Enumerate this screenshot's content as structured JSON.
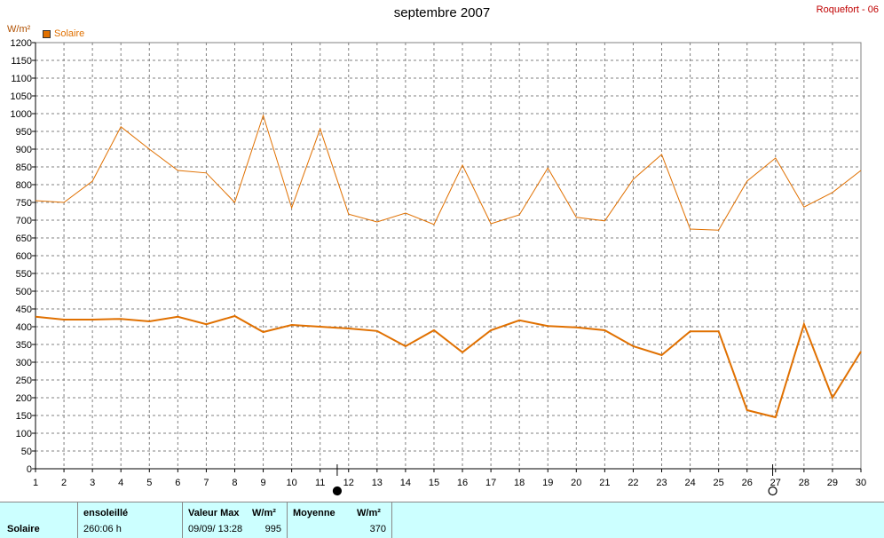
{
  "page": {
    "title": "septembre 2007",
    "station": "Roquefort - 06",
    "unit": "W/m²"
  },
  "legend": {
    "label": "Solaire"
  },
  "colors": {
    "series": "#e07000",
    "grid": "#808080",
    "footer_bg": "#ccffff"
  },
  "markers": [
    {
      "day": 11.6,
      "symbol": "filled-circle",
      "name": "new-moon-icon"
    },
    {
      "day": 26.9,
      "symbol": "open-circle",
      "name": "full-moon-icon"
    }
  ],
  "footer": {
    "row_label": "Solaire",
    "sunshine_label": "ensoleillé",
    "sunshine_value": "260:06 h",
    "max_label": "Valeur Max",
    "max_unit": "W/m²",
    "max_date": "09/09/ 13:28",
    "max_value": "995",
    "avg_label": "Moyenne",
    "avg_unit": "W/m²",
    "avg_value": "370"
  },
  "chart_data": {
    "type": "line",
    "title": "septembre 2007",
    "ylabel": "W/m²",
    "xlabel": "",
    "ylim": [
      0,
      1200
    ],
    "yticks": [
      0,
      50,
      100,
      150,
      200,
      250,
      300,
      350,
      400,
      450,
      500,
      550,
      600,
      650,
      700,
      750,
      800,
      850,
      900,
      950,
      1000,
      1050,
      1100,
      1150,
      1200
    ],
    "x": [
      1,
      2,
      3,
      4,
      5,
      6,
      7,
      8,
      9,
      10,
      11,
      12,
      13,
      14,
      15,
      16,
      17,
      18,
      19,
      20,
      21,
      22,
      23,
      24,
      25,
      26,
      27,
      28,
      29,
      30
    ],
    "grid": true,
    "legend_position": "top-left",
    "series": [
      {
        "name": "Solaire",
        "role": "max",
        "values": [
          755,
          750,
          810,
          963,
          900,
          840,
          833,
          750,
          995,
          735,
          957,
          717,
          695,
          720,
          688,
          855,
          690,
          715,
          847,
          708,
          698,
          815,
          885,
          675,
          672,
          810,
          875,
          737,
          778,
          840
        ]
      },
      {
        "role": "mean",
        "values": [
          428,
          420,
          420,
          422,
          415,
          428,
          407,
          430,
          385,
          405,
          400,
          395,
          388,
          345,
          390,
          328,
          390,
          418,
          402,
          398,
          390,
          345,
          320,
          387,
          387,
          165,
          145,
          407,
          200,
          330
        ]
      }
    ]
  }
}
